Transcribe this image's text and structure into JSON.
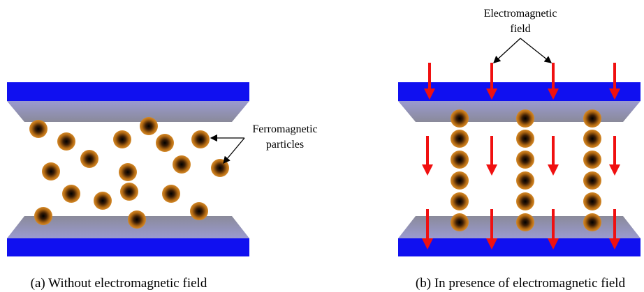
{
  "panels": [
    {
      "caption": "(a) Without electromagnetic field",
      "annotation": [
        "Ferromagnetic",
        "particles"
      ]
    },
    {
      "caption": "(b) In presence of electromagnetic field",
      "annotation": [
        "Electromagnetic",
        "field"
      ]
    }
  ]
}
